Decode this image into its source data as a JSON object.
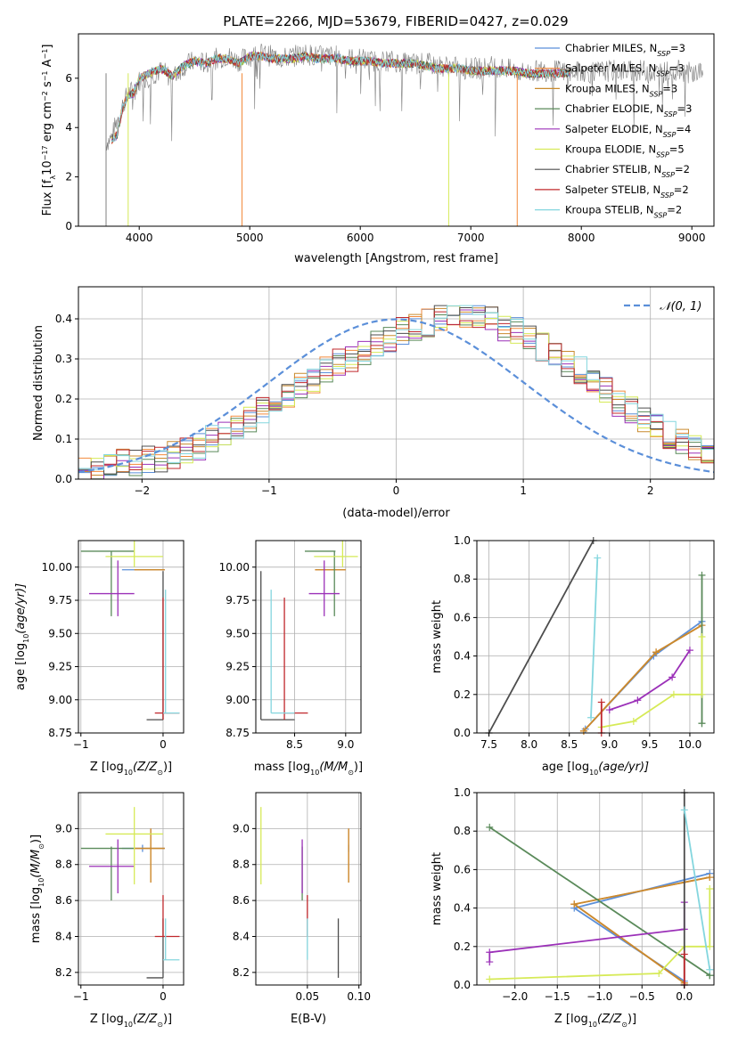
{
  "figure_title": "PLATE=2266, MJD=53679, FIBERID=0427, z=0.029",
  "colors": {
    "chabrier_miles": "#5b8fd9",
    "salpeter_miles": "#f28a3b",
    "kroupa_miles": "#c98a2e",
    "chabrier_elodie": "#5a8a5a",
    "salpeter_elodie": "#9b30b8",
    "kroupa_elodie": "#d6ea57",
    "chabrier_stelib": "#4d4d4d",
    "salpeter_stelib": "#c0282c",
    "kroupa_stelib": "#84d6de",
    "data": "#7f7f7f",
    "gauss": "#5b8fd9"
  },
  "chart_data": [
    {
      "type": "line",
      "id": "spectrum",
      "xlabel": "wavelength [Angstrom, rest frame]",
      "ylabel_main": "Flux [f",
      "ylabel_sub": "λ",
      "ylabel_rest": "10",
      "ylabel_sup1": "−17",
      "ylabel_tail": " erg cm",
      "ylabel_sup2": "−2",
      "ylabel_s": " s",
      "ylabel_sup3": "−1",
      "ylabel_A": " A",
      "ylabel_sup4": "−1",
      "ylabel_end": "]",
      "xlim": [
        3450,
        9200
      ],
      "ylim": [
        0,
        7.8
      ],
      "xticks": [
        "4000",
        "5000",
        "6000",
        "7000",
        "8000",
        "9000"
      ],
      "yticks": [
        "0",
        "2",
        "4",
        "6"
      ],
      "legend": [
        {
          "key": "chabrier_miles",
          "pre": "Chabrier MILES, N",
          "sub": "SSP",
          "post": "=3"
        },
        {
          "key": "salpeter_miles",
          "pre": "Salpeter MILES, N",
          "sub": "SSP",
          "post": "=3"
        },
        {
          "key": "kroupa_miles",
          "pre": "Kroupa MILES, N",
          "sub": "SSP",
          "post": "=3"
        },
        {
          "key": "chabrier_elodie",
          "pre": "Chabrier ELODIE, N",
          "sub": "SSP",
          "post": "=3"
        },
        {
          "key": "salpeter_elodie",
          "pre": "Salpeter ELODIE, N",
          "sub": "SSP",
          "post": "=4"
        },
        {
          "key": "kroupa_elodie",
          "pre": "Kroupa ELODIE, N",
          "sub": "SSP",
          "post": "=5"
        },
        {
          "key": "chabrier_stelib",
          "pre": "Chabrier STELIB, N",
          "sub": "SSP",
          "post": "=2"
        },
        {
          "key": "salpeter_stelib",
          "pre": "Salpeter STELIB, N",
          "sub": "SSP",
          "post": "=2"
        },
        {
          "key": "kroupa_stelib",
          "pre": "Kroupa STELIB, N",
          "sub": "SSP",
          "post": "=2"
        }
      ],
      "series": [
        {
          "key": "data",
          "x": [
            3700,
            3750,
            3800,
            3850,
            3900,
            3950,
            4000,
            4100,
            4200,
            4300,
            4400,
            4500,
            4600,
            4700,
            4800,
            4900,
            5000,
            5100,
            5200,
            5300,
            5400,
            5500,
            5600,
            5700,
            5800,
            5900,
            6000,
            6100,
            6200,
            6300,
            6400,
            6500,
            6600,
            6700,
            6800,
            6900,
            7000,
            7100,
            7200,
            7300,
            7400,
            7500,
            7600,
            7700,
            7800,
            7900,
            8000,
            8100,
            8200,
            8300,
            8400,
            8500,
            8600,
            8700,
            8800,
            8900,
            9000,
            9100
          ],
          "y": [
            3.4,
            3.6,
            4.3,
            4.9,
            5.4,
            5.5,
            5.9,
            6.1,
            6.3,
            6.0,
            6.5,
            6.7,
            6.6,
            6.8,
            6.9,
            6.7,
            6.9,
            7.0,
            6.9,
            6.8,
            6.9,
            7.0,
            6.9,
            6.9,
            6.9,
            6.8,
            6.8,
            6.7,
            6.7,
            6.7,
            6.6,
            6.6,
            6.6,
            6.5,
            6.5,
            6.4,
            6.4,
            6.4,
            6.5,
            6.4,
            6.3,
            6.2,
            6.3,
            6.3,
            6.3,
            6.2,
            6.3,
            6.2,
            6.3,
            6.3,
            6.3,
            6.3,
            6.3,
            6.2,
            6.3,
            6.3,
            6.2,
            6.3
          ]
        },
        {
          "key": "model",
          "x": [
            3750,
            3800,
            3850,
            3900,
            3950,
            4000,
            4100,
            4200,
            4300,
            4400,
            4500,
            4600,
            4700,
            4800,
            4900,
            5000,
            5100,
            5200,
            5300,
            5400,
            5500,
            5600,
            5700,
            5800,
            5900,
            6000,
            6100,
            6200,
            6300,
            6400,
            6500,
            6600,
            6700,
            6800,
            6900,
            7000,
            7100,
            7200,
            7300,
            7400,
            7500,
            7600,
            7700,
            7800,
            7900
          ],
          "y": [
            3.5,
            3.7,
            4.8,
            5.3,
            5.4,
            6.0,
            6.2,
            6.4,
            6.1,
            6.5,
            6.7,
            6.6,
            6.8,
            6.8,
            6.6,
            6.9,
            6.9,
            6.8,
            6.8,
            6.8,
            6.9,
            6.8,
            6.8,
            6.8,
            6.7,
            6.7,
            6.7,
            6.6,
            6.6,
            6.6,
            6.6,
            6.5,
            6.4,
            6.4,
            6.4,
            6.3,
            6.3,
            6.3,
            6.3,
            6.3,
            6.2,
            6.2,
            6.2,
            6.2,
            6.2
          ]
        }
      ]
    },
    {
      "type": "bar",
      "id": "residuals",
      "xlabel": "(data-model)/error",
      "ylabel": "Normed distribution",
      "xlim": [
        -2.5,
        2.5
      ],
      "ylim": [
        0,
        0.48
      ],
      "xticks": [
        "−2",
        "−1",
        "0",
        "1",
        "2"
      ],
      "xtick_values": [
        -2,
        -1,
        0,
        1,
        2
      ],
      "yticks": [
        "0.0",
        "0.1",
        "0.2",
        "0.3",
        "0.4"
      ],
      "ytick_values": [
        0,
        0.1,
        0.2,
        0.3,
        0.4
      ],
      "grid": true,
      "legend_label": "𝒩(0, 1)",
      "legend_placement": "top-right",
      "bin_edges_start": -2.5,
      "bin_width": 0.1,
      "histogram": [
        0.02,
        0.02,
        0.03,
        0.04,
        0.04,
        0.05,
        0.05,
        0.06,
        0.07,
        0.08,
        0.1,
        0.11,
        0.13,
        0.15,
        0.17,
        0.19,
        0.21,
        0.23,
        0.25,
        0.27,
        0.29,
        0.3,
        0.32,
        0.34,
        0.35,
        0.37,
        0.38,
        0.39,
        0.4,
        0.41,
        0.4,
        0.41,
        0.4,
        0.38,
        0.37,
        0.35,
        0.33,
        0.31,
        0.29,
        0.27,
        0.24,
        0.22,
        0.19,
        0.17,
        0.15,
        0.13,
        0.11,
        0.09,
        0.08,
        0.06
      ]
    },
    {
      "type": "scatter",
      "id": "age_vs_Z",
      "xlabel": "Z [log",
      "xlabel_sub": "10",
      "xlabel_rest": "(Z/Z",
      "xlabel_sub2": "⊙",
      "xlabel_end": ")]",
      "ylabel": "age  [log",
      "ylabel_sub": "10",
      "ylabel_rest": "(age/yr)]",
      "xlim": [
        -1.03,
        0.25
      ],
      "ylim": [
        8.75,
        10.2
      ],
      "xticks": [
        "−1",
        "0"
      ],
      "xtick_values": [
        -1,
        0
      ],
      "yticks": [
        "8.75",
        "9.00",
        "9.25",
        "9.50",
        "9.75",
        "10.00"
      ],
      "ytick_values": [
        8.75,
        9.0,
        9.25,
        9.5,
        9.75,
        10.0
      ]
    },
    {
      "type": "scatter",
      "id": "age_vs_mass",
      "xlabel": "mass [log",
      "xlabel_sub": "10",
      "xlabel_rest": "(M/M",
      "xlabel_sub2": "⊙",
      "xlabel_end": ")]",
      "xlim": [
        8.12,
        9.15
      ],
      "ylim": [
        8.75,
        10.2
      ],
      "xticks": [
        "8.5",
        "9.0"
      ],
      "xtick_values": [
        8.5,
        9.0
      ],
      "yticks": [
        "8.75",
        "9.00",
        "9.25",
        "9.50",
        "9.75",
        "10.00"
      ],
      "ytick_values": [
        8.75,
        9.0,
        9.25,
        9.5,
        9.75,
        10.0
      ]
    },
    {
      "type": "line",
      "id": "weight_vs_age",
      "xlabel": "age  [log",
      "xlabel_sub": "10",
      "xlabel_rest": "(age/yr)]",
      "ylabel": "mass weight",
      "xlim": [
        7.35,
        10.3
      ],
      "ylim": [
        0,
        1
      ],
      "xticks": [
        "7.5",
        "8.0",
        "8.5",
        "9.0",
        "9.5",
        "10.0"
      ],
      "xtick_values": [
        7.5,
        8.0,
        8.5,
        9.0,
        9.5,
        10.0
      ],
      "yticks": [
        "0.0",
        "0.2",
        "0.4",
        "0.6",
        "0.8",
        "1.0"
      ],
      "ytick_values": [
        0,
        0.2,
        0.4,
        0.6,
        0.8,
        1.0
      ]
    },
    {
      "type": "scatter",
      "id": "mass_vs_Z",
      "xlabel": "Z [log",
      "xlabel_sub": "10",
      "xlabel_rest": "(Z/Z",
      "xlabel_sub2": "⊙",
      "xlabel_end": ")]",
      "ylabel": "mass [log",
      "ylabel_sub": "10",
      "ylabel_rest": "(M/M",
      "ylabel_sub2": "⊙",
      "ylabel_end": ")]",
      "xlim": [
        -1.03,
        0.25
      ],
      "ylim": [
        8.13,
        9.2
      ],
      "xticks": [
        "−1",
        "0"
      ],
      "xtick_values": [
        -1,
        0
      ],
      "yticks": [
        "8.2",
        "8.4",
        "8.6",
        "8.8",
        "9.0"
      ],
      "ytick_values": [
        8.2,
        8.4,
        8.6,
        8.8,
        9.0
      ]
    },
    {
      "type": "scatter",
      "id": "mass_vs_ebv",
      "xlabel": "E(B-V)",
      "xlim": [
        0.0,
        0.102
      ],
      "ylim": [
        8.13,
        9.2
      ],
      "xticks": [
        "0.05",
        "0.10"
      ],
      "xtick_values": [
        0.05,
        0.1
      ],
      "yticks": [
        "8.2",
        "8.4",
        "8.6",
        "8.8",
        "9.0"
      ],
      "ytick_values": [
        8.2,
        8.4,
        8.6,
        8.8,
        9.0
      ]
    },
    {
      "type": "line",
      "id": "weight_vs_Z",
      "xlabel": "Z [log",
      "xlabel_sub": "10",
      "xlabel_rest": "(Z/Z",
      "xlabel_sub2": "⊙",
      "xlabel_end": ")]",
      "ylabel": "mass weight",
      "xlim": [
        -2.45,
        0.35
      ],
      "ylim": [
        0,
        1
      ],
      "xticks": [
        "−2.0",
        "−1.5",
        "−1.0",
        "−0.5",
        "0.0"
      ],
      "xtick_values": [
        -2.0,
        -1.5,
        -1.0,
        -0.5,
        0.0
      ],
      "yticks": [
        "0.0",
        "0.2",
        "0.4",
        "0.6",
        "0.8",
        "1.0"
      ],
      "ytick_values": [
        0,
        0.2,
        0.4,
        0.6,
        0.8,
        1.0
      ]
    }
  ],
  "model_points": {
    "chabrier_miles": {
      "Z": [
        0.3,
        -1.3,
        0.0
      ],
      "age": [
        10.15,
        9.55,
        8.7
      ],
      "w": [
        0.58,
        0.4,
        0.02
      ],
      "mass": 8.89,
      "Zerr": [
        -0.5,
        0.02
      ],
      "ageerr": [
        9.97,
        9.97
      ],
      "masserr": [
        8.87,
        8.91
      ],
      "ebv": 0.09
    },
    "salpeter_miles": {
      "Z": [
        0.3,
        -1.3,
        0.0
      ],
      "age": [
        10.15,
        9.58,
        8.68
      ],
      "w": [
        0.56,
        0.42,
        0.01
      ],
      "mass": 8.89,
      "Zerr": [
        -0.35,
        0.02
      ],
      "ageerr": [
        9.97,
        9.97
      ],
      "masserr": [
        8.7,
        9.0
      ],
      "ebv": 0.09
    },
    "kroupa_miles": {
      "Z": [
        0.3,
        -1.3,
        0.0
      ],
      "age": [
        10.15,
        9.58,
        8.68
      ],
      "w": [
        0.56,
        0.42,
        0.01
      ],
      "mass": 8.89,
      "Zerr": [
        -0.35,
        0.02
      ],
      "ageerr": [
        9.97,
        9.97
      ],
      "masserr": [
        8.7,
        9.0
      ],
      "ebv": 0.09
    },
    "chabrier_elodie": {
      "Z": [
        -2.3,
        0.3,
        0.3
      ],
      "age": [
        10.15,
        10.15,
        10.15
      ],
      "w": [
        0.82,
        0.05,
        0.05
      ],
      "mass": 8.89,
      "Zerr": [
        -1.0,
        -0.35
      ],
      "ageerr": [
        9.63,
        10.12
      ],
      "masserr": [
        8.6,
        8.9
      ],
      "ebv": 0.045
    },
    "salpeter_elodie": {
      "Z": [
        -2.3,
        -2.3,
        0.0,
        0.0
      ],
      "age": [
        9.0,
        9.35,
        9.78,
        10.0
      ],
      "w": [
        0.12,
        0.17,
        0.29,
        0.43
      ],
      "mass": 8.79,
      "Zerr": [
        -0.9,
        -0.35
      ],
      "ageerr": [
        9.63,
        10.05
      ],
      "masserr": [
        8.64,
        8.94
      ],
      "ebv": 0.045
    },
    "kroupa_elodie": {
      "Z": [
        -2.3,
        -0.3,
        0.0,
        0.3,
        0.3
      ],
      "age": [
        8.9,
        9.3,
        9.8,
        10.15,
        10.15
      ],
      "w": [
        0.03,
        0.06,
        0.2,
        0.2,
        0.5
      ],
      "mass": 8.97,
      "Zerr": [
        -0.7,
        0.0
      ],
      "ageerr": [
        10.0,
        10.2
      ],
      "masserr": [
        8.69,
        9.12
      ],
      "ebv": 0.005
    },
    "chabrier_stelib": {
      "Z": [
        0.0,
        0.0
      ],
      "age": [
        7.5,
        8.8
      ],
      "w": [
        0.0,
        1.0
      ],
      "mass": 8.17,
      "Zerr": [
        -0.2,
        0.0
      ],
      "ageerr": [
        8.85,
        9.97
      ],
      "masserr": [
        8.17,
        8.5
      ],
      "ebv": 0.08
    },
    "salpeter_stelib": {
      "Z": [
        0.0,
        0.0
      ],
      "age": [
        8.9,
        8.9
      ],
      "w": [
        0.16,
        0.0
      ],
      "mass": 8.4,
      "Zerr": [
        -0.1,
        0.2
      ],
      "ageerr": [
        8.85,
        9.77
      ],
      "masserr": [
        8.4,
        8.63
      ],
      "ebv": 0.05
    },
    "kroupa_stelib": {
      "Z": [
        0.3,
        0.0
      ],
      "age": [
        8.77,
        8.85
      ],
      "w": [
        0.08,
        0.91
      ],
      "mass": 8.27,
      "Zerr": [
        0.0,
        0.2
      ],
      "ageerr": [
        8.9,
        9.83
      ],
      "masserr": [
        8.27,
        8.5
      ],
      "ebv": 0.05
    }
  }
}
